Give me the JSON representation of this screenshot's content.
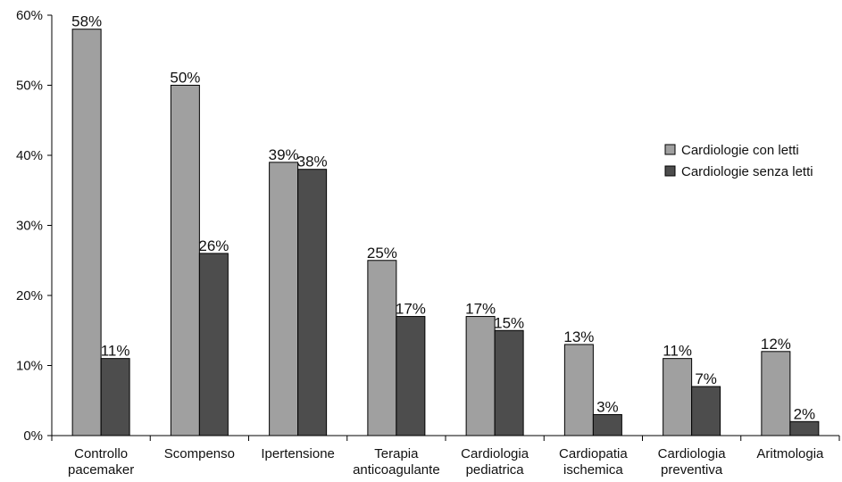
{
  "chart_data": {
    "type": "bar",
    "categories": [
      [
        "Controllo",
        "pacemaker"
      ],
      [
        "Scompenso"
      ],
      [
        "Ipertensione"
      ],
      [
        "Terapia",
        "anticoagulante"
      ],
      [
        "Cardiologia",
        "pediatrica"
      ],
      [
        "Cardiopatia",
        "ischemica"
      ],
      [
        "Cardiologia",
        "preventiva"
      ],
      [
        "Aritmologia"
      ]
    ],
    "series": [
      {
        "name": "Cardiologie con letti",
        "color": "#a0a0a0",
        "values": [
          58,
          50,
          39,
          25,
          17,
          13,
          11,
          12
        ],
        "labels": [
          "58%",
          "50%",
          "39%",
          "25%",
          "17%",
          "13%",
          "11%",
          "12%"
        ]
      },
      {
        "name": "Cardiologie senza letti",
        "color": "#4d4d4d",
        "values": [
          11,
          26,
          38,
          17,
          15,
          3,
          7,
          2
        ],
        "labels": [
          "11%",
          "26%",
          "38%",
          "17%",
          "15%",
          "3%",
          "7%",
          "2%"
        ]
      }
    ],
    "y_ticks": [
      0,
      10,
      20,
      30,
      40,
      50,
      60
    ],
    "y_tick_labels": [
      "0%",
      "10%",
      "20%",
      "30%",
      "40%",
      "50%",
      "60%"
    ],
    "ylim": [
      0,
      60
    ],
    "title": "",
    "xlabel": "",
    "ylabel": "",
    "grid": false,
    "legend_position": "right"
  }
}
